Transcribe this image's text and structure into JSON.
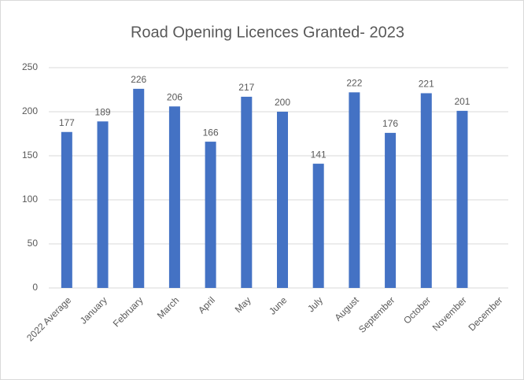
{
  "chart_data": {
    "type": "bar",
    "title": "Road Opening Licences Granted- 2023",
    "categories": [
      "2022 Average",
      "January",
      "February",
      "March",
      "April",
      "May",
      "June",
      "July",
      "August",
      "September",
      "October",
      "November",
      "December"
    ],
    "values": [
      177,
      189,
      226,
      206,
      166,
      217,
      200,
      141,
      222,
      176,
      221,
      201,
      null
    ],
    "color": "#4472c4",
    "ylim": [
      0,
      250
    ],
    "yticks": [
      0,
      50,
      100,
      150,
      200,
      250
    ],
    "grid": true,
    "data_labels": true
  }
}
